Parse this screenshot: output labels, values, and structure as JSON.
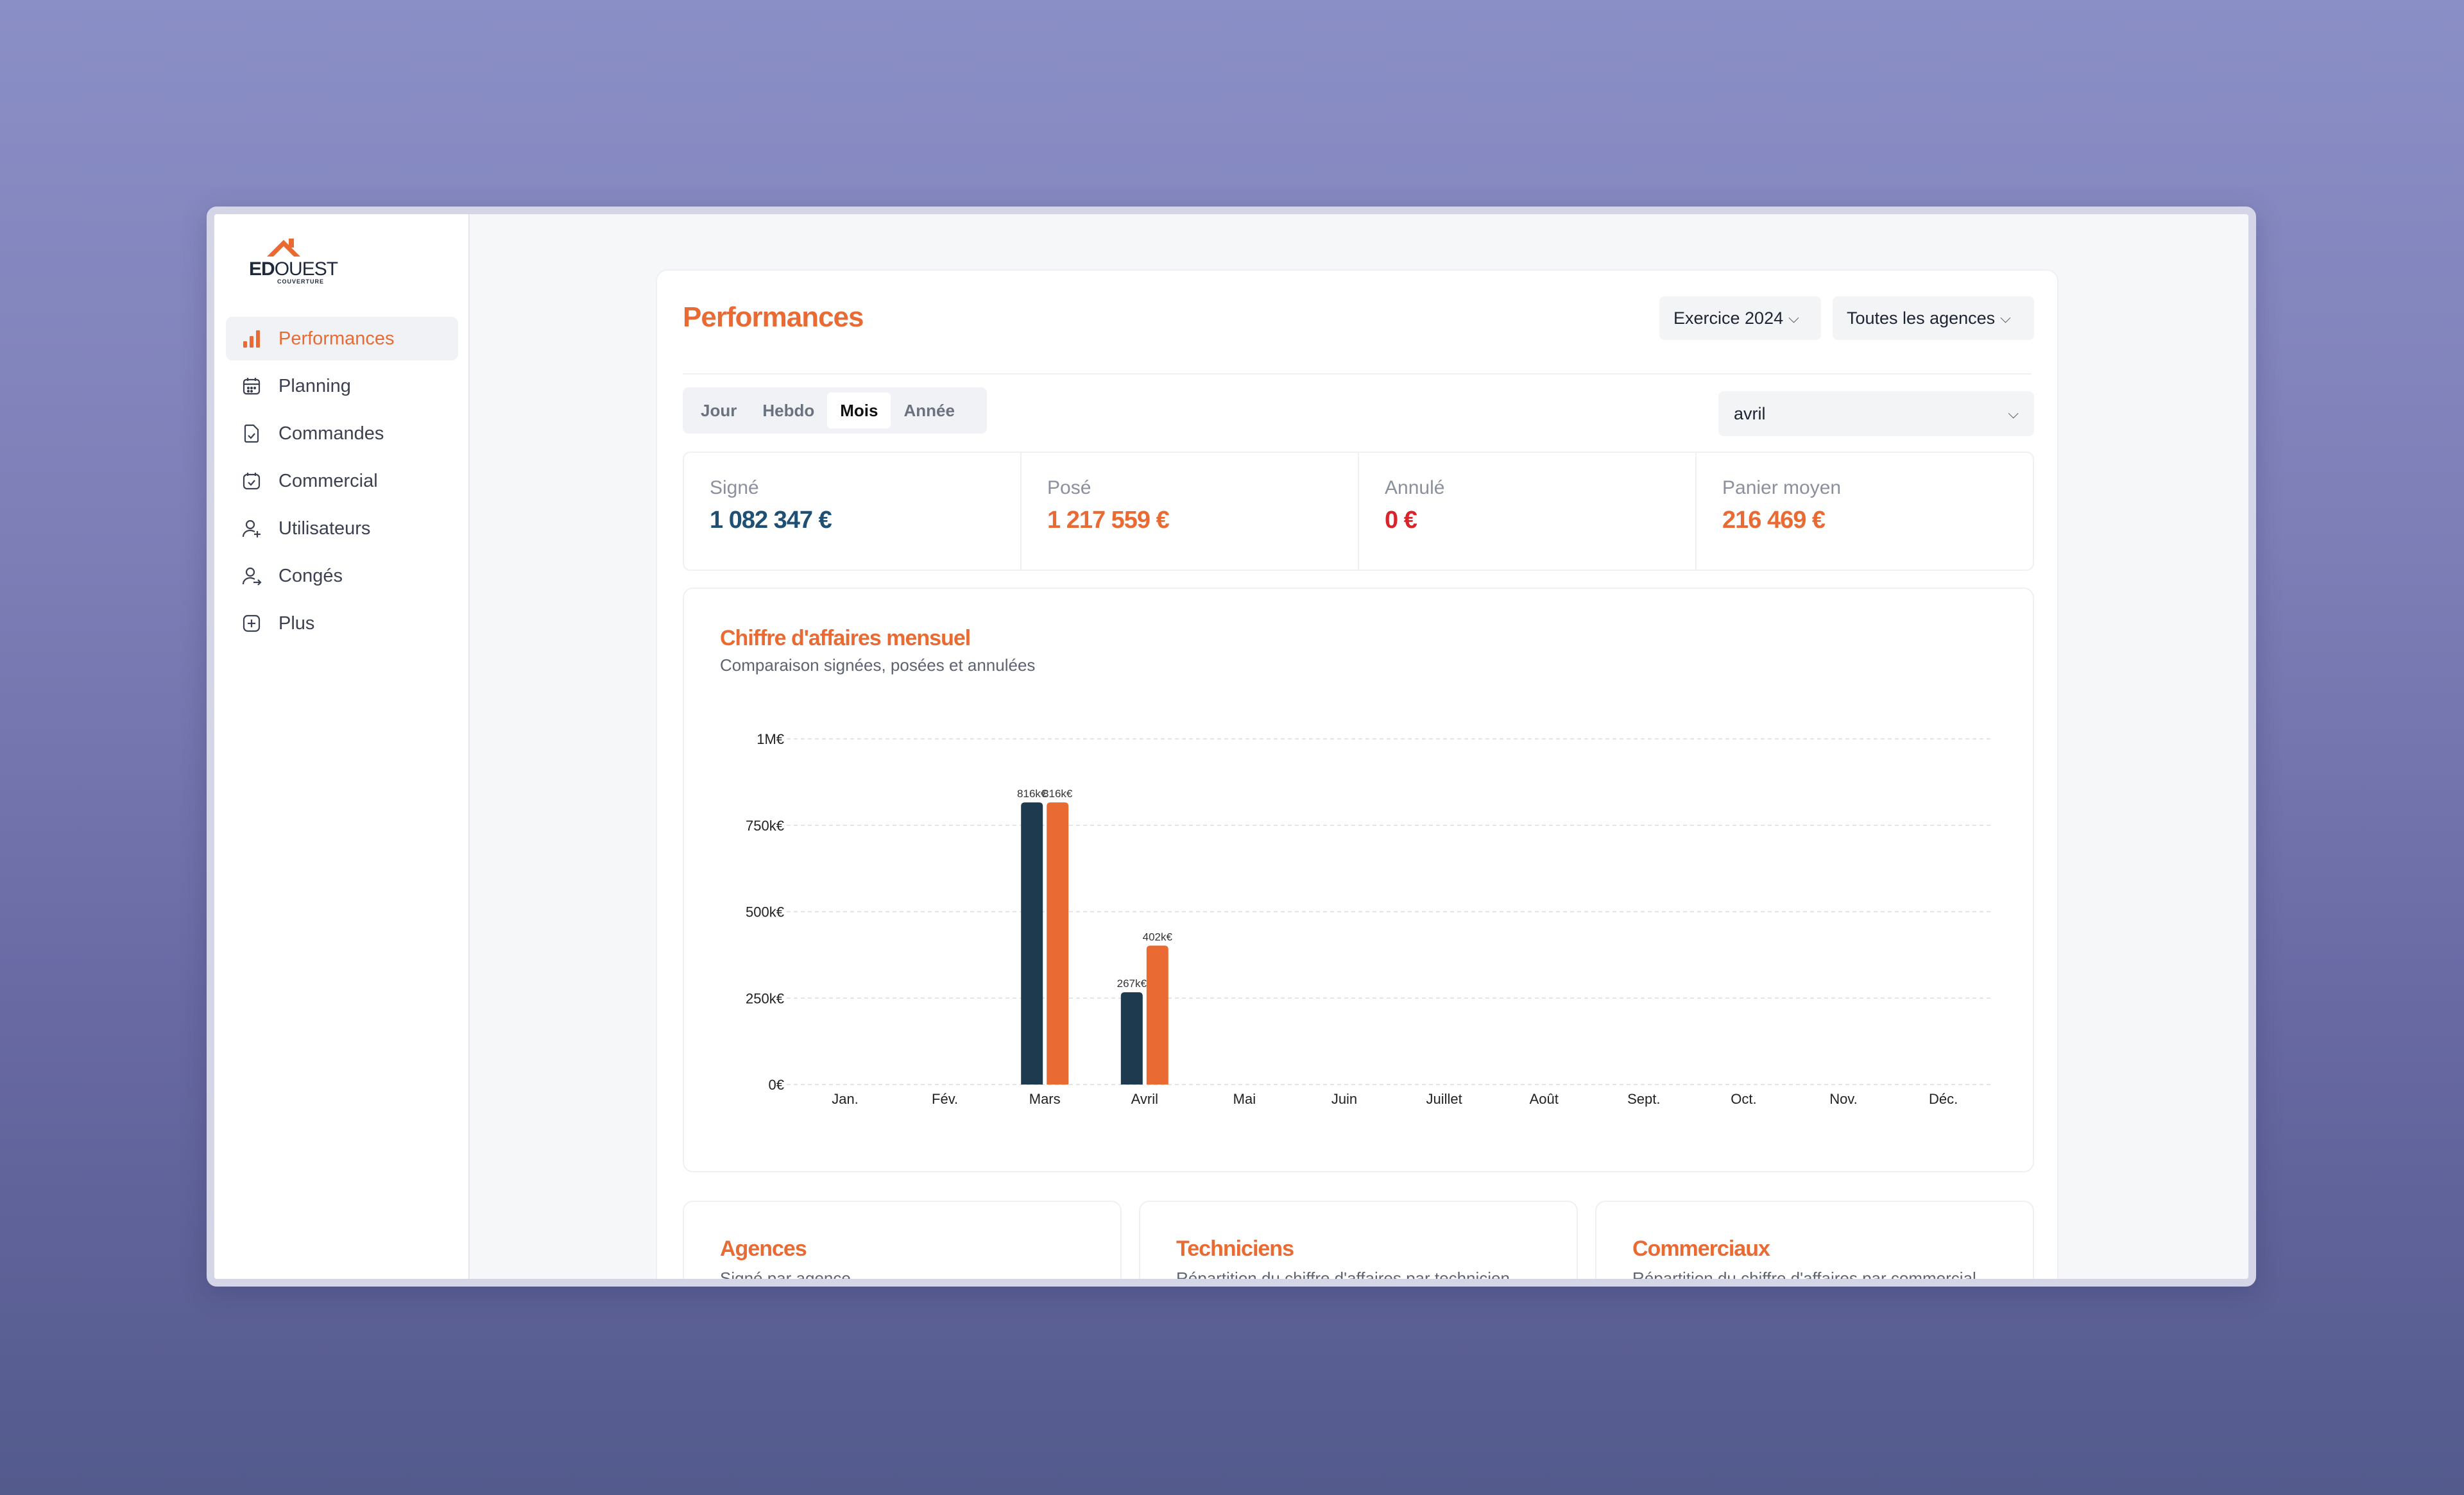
{
  "sidebar": {
    "logo": {
      "brand_bold": "ED",
      "brand_light": "OUEST",
      "sub": "COUVERTURE"
    },
    "items": [
      {
        "label": "Performances",
        "icon": "bar-chart-icon",
        "active": true
      },
      {
        "label": "Planning",
        "icon": "calendar-icon",
        "active": false
      },
      {
        "label": "Commandes",
        "icon": "document-check-icon",
        "active": false
      },
      {
        "label": "Commercial",
        "icon": "calendar-check-icon",
        "active": false
      },
      {
        "label": "Utilisateurs",
        "icon": "user-plus-icon",
        "active": false
      },
      {
        "label": "Congés",
        "icon": "user-arrow-icon",
        "active": false
      },
      {
        "label": "Plus",
        "icon": "plus-square-icon",
        "active": false
      }
    ]
  },
  "header": {
    "title": "Performances",
    "exercise_select": "Exercice 2024",
    "agency_select": "Toutes les agences"
  },
  "period_tabs": {
    "items": [
      "Jour",
      "Hebdo",
      "Mois",
      "Année"
    ],
    "active": "Mois"
  },
  "month_select": "avril",
  "kpis": [
    {
      "label": "Signé",
      "value": "1 082 347 €",
      "color": "#1f5073"
    },
    {
      "label": "Posé",
      "value": "1 217 559 €",
      "color": "#ea6a33"
    },
    {
      "label": "Annulé",
      "value": "0 €",
      "color": "#d9242c"
    },
    {
      "label": "Panier moyen",
      "value": "216 469 €",
      "color": "#ea6a33"
    }
  ],
  "chart": {
    "title": "Chiffre d'affaires mensuel",
    "subtitle": "Comparaison signées, posées et annulées"
  },
  "chart_data": {
    "type": "bar",
    "categories": [
      "Jan.",
      "Fév.",
      "Mars",
      "Avril",
      "Mai",
      "Juin",
      "Juillet",
      "Août",
      "Sept.",
      "Oct.",
      "Nov.",
      "Déc."
    ],
    "series": [
      {
        "name": "Signé",
        "color": "#1e3a4f",
        "values": [
          0,
          0,
          816,
          267,
          0,
          0,
          0,
          0,
          0,
          0,
          0,
          0
        ],
        "labels": [
          "",
          "",
          "816k€",
          "267k€",
          "",
          "",
          "",
          "",
          "",
          "",
          "",
          ""
        ]
      },
      {
        "name": "Posé",
        "color": "#ea6a33",
        "values": [
          0,
          0,
          816,
          402,
          0,
          0,
          0,
          0,
          0,
          0,
          0,
          0
        ],
        "labels": [
          "",
          "",
          "816k€",
          "402k€",
          "",
          "",
          "",
          "",
          "",
          "",
          "",
          ""
        ]
      }
    ],
    "yticks": [
      {
        "value": 1000,
        "label": "1M€"
      },
      {
        "value": 750,
        "label": "750k€"
      },
      {
        "value": 500,
        "label": "500k€"
      },
      {
        "value": 250,
        "label": "250k€"
      },
      {
        "value": 0,
        "label": "0€"
      }
    ],
    "ylim": [
      0,
      1000
    ],
    "grid": true
  },
  "bottom_cards": [
    {
      "title": "Agences",
      "subtitle": "Signé par agence"
    },
    {
      "title": "Techniciens",
      "subtitle": "Répartition du chiffre d'affaires par technicien"
    },
    {
      "title": "Commerciaux",
      "subtitle": "Répartition du chiffre d'affaires par commercial"
    }
  ]
}
